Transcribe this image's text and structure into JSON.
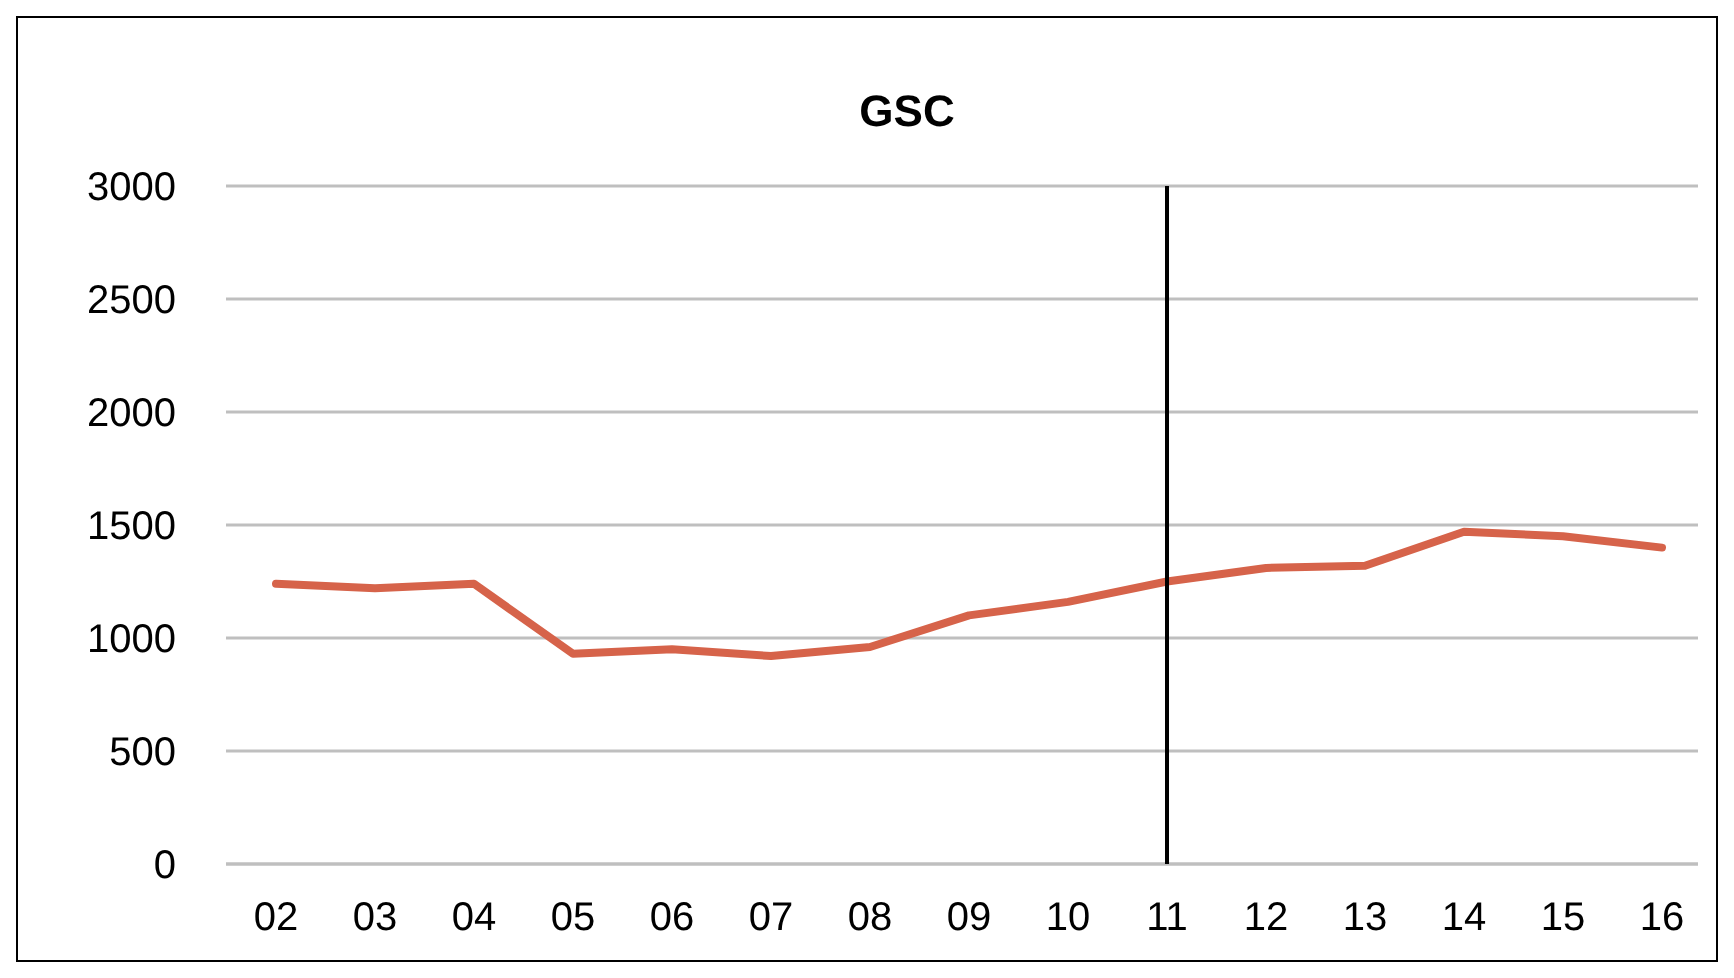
{
  "chart_data": {
    "type": "line",
    "title": "GSC",
    "categories": [
      "02",
      "03",
      "04",
      "05",
      "06",
      "07",
      "08",
      "09",
      "10",
      "11",
      "12",
      "13",
      "14",
      "15",
      "16"
    ],
    "series": [
      {
        "color": "#d6634a",
        "values": [
          1240,
          1220,
          1240,
          930,
          950,
          920,
          960,
          1100,
          1160,
          1250,
          1310,
          1320,
          1470,
          1450,
          1400
        ]
      }
    ],
    "ylim": [
      0,
      3000
    ],
    "yticks": [
      0,
      500,
      1000,
      1500,
      2000,
      2500,
      3000
    ],
    "grid": "y",
    "marker": "none",
    "line_style": "solid",
    "ref_lines": [
      {
        "axis": "x",
        "value": "11",
        "color": "#000000"
      }
    ]
  }
}
